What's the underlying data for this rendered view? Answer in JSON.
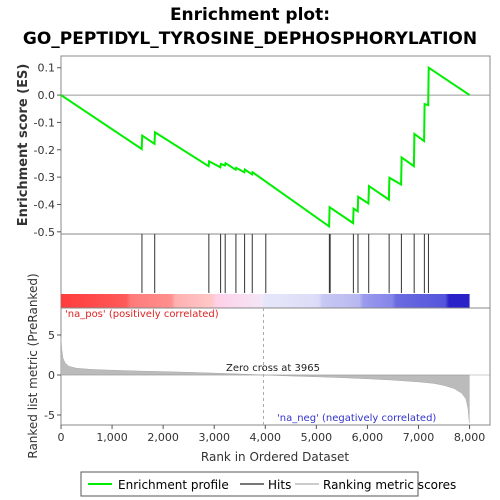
{
  "chart_data": {
    "type": "line",
    "title_line1": "Enrichment plot:",
    "title_line2": "GO_PEPTIDYL_TYROSINE_DEPHOSPHORYLATION",
    "xlabel": "Rank in Ordered Dataset",
    "ylabel_top": "Enrichment score (ES)",
    "ylabel_bottom": "Ranked list metric (PreRanked)",
    "xlim": [
      0,
      8400
    ],
    "x_ticks": [
      0,
      1000,
      2000,
      3000,
      4000,
      5000,
      6000,
      7000,
      8000
    ],
    "x_tick_labels": [
      "0",
      "1,000",
      "2,000",
      "3,000",
      "4,000",
      "5,000",
      "6,000",
      "7,000",
      "8,000"
    ],
    "es_ylim": [
      -0.5,
      0.13
    ],
    "es_ticks": [
      0.1,
      0.0,
      -0.1,
      -0.2,
      -0.3,
      -0.4,
      -0.5
    ],
    "es_tick_labels": [
      "0.1",
      "0.0",
      "-0.1",
      "-0.2",
      "-0.3",
      "-0.4",
      "-0.5"
    ],
    "metric_ylim": [
      -6.3,
      6.3
    ],
    "metric_ticks": [
      5,
      0,
      -5
    ],
    "metric_tick_labels": [
      "5",
      "0",
      "-5"
    ],
    "series": [
      {
        "name": "Enrichment profile",
        "color": "#00ee00",
        "x": [
          0,
          1580,
          1590,
          1830,
          1840,
          2890,
          2900,
          3120,
          3130,
          3210,
          3220,
          3420,
          3430,
          3590,
          3600,
          3740,
          3750,
          5250,
          5260,
          5720,
          5730,
          5810,
          5820,
          6020,
          6030,
          6420,
          6430,
          6660,
          6670,
          6910,
          6920,
          7110,
          7120,
          7190,
          7200,
          8000
        ],
        "y": [
          0.0,
          -0.197,
          -0.148,
          -0.178,
          -0.136,
          -0.26,
          -0.242,
          -0.264,
          -0.252,
          -0.257,
          -0.249,
          -0.273,
          -0.266,
          -0.282,
          -0.272,
          -0.29,
          -0.282,
          -0.48,
          -0.41,
          -0.468,
          -0.415,
          -0.425,
          -0.372,
          -0.396,
          -0.333,
          -0.382,
          -0.302,
          -0.327,
          -0.228,
          -0.26,
          -0.142,
          -0.168,
          -0.033,
          -0.037,
          0.1,
          0.0
        ]
      }
    ],
    "hits": [
      1585,
      1835,
      2895,
      3125,
      3215,
      3425,
      3595,
      3745,
      4010,
      5255,
      5270,
      5725,
      5815,
      6025,
      6425,
      6665,
      6915,
      7115,
      7195
    ],
    "zero_cross_label": "Zero cross at 3965",
    "zero_cross_x": 3965,
    "na_pos_label": "'na_pos' (positively correlated)",
    "na_neg_label": "'na_neg' (negatively correlated)",
    "metric_curve": {
      "x": [
        0,
        15,
        40,
        80,
        150,
        300,
        600,
        1000,
        1500,
        2000,
        2500,
        3000,
        3500,
        3965,
        4500,
        5000,
        5500,
        6000,
        6500,
        7000,
        7300,
        7500,
        7700,
        7850,
        7930,
        7970,
        7995
      ],
      "y": [
        4.8,
        3.2,
        2.1,
        1.5,
        1.1,
        0.85,
        0.7,
        0.6,
        0.5,
        0.42,
        0.34,
        0.24,
        0.12,
        0.0,
        -0.12,
        -0.22,
        -0.34,
        -0.48,
        -0.64,
        -0.86,
        -1.05,
        -1.3,
        -1.7,
        -2.3,
        -3.0,
        -4.2,
        -6.0
      ]
    },
    "legend": [
      {
        "label": "Enrichment profile",
        "color": "#00ee00"
      },
      {
        "label": "Hits",
        "color": "#777777"
      },
      {
        "label": "Ranking metric scores",
        "color": "#cccccc"
      }
    ],
    "legend_position": "bottom",
    "grid": false
  }
}
